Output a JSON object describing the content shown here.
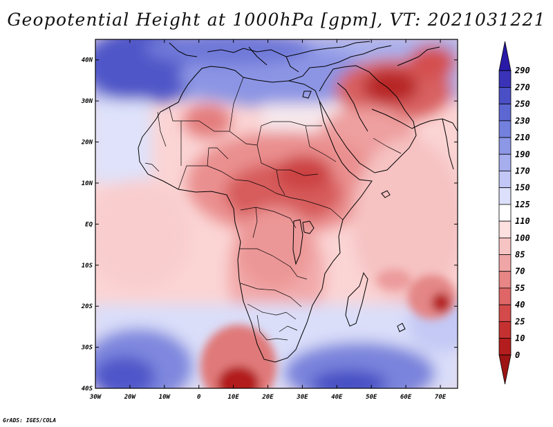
{
  "title": "Geopotential Height at 1000hPa [gpm], VT: 2021031221",
  "credit": "GrADS: IGES/COLA",
  "map": {
    "lon_range": [
      -30,
      75
    ],
    "lat_range": [
      -40,
      45
    ],
    "lon_ticks": [
      {
        "value": -30,
        "label": "30W"
      },
      {
        "value": -20,
        "label": "20W"
      },
      {
        "value": -10,
        "label": "10W"
      },
      {
        "value": 0,
        "label": "0"
      },
      {
        "value": 10,
        "label": "10E"
      },
      {
        "value": 20,
        "label": "20E"
      },
      {
        "value": 30,
        "label": "30E"
      },
      {
        "value": 40,
        "label": "40E"
      },
      {
        "value": 50,
        "label": "50E"
      },
      {
        "value": 60,
        "label": "60E"
      },
      {
        "value": 70,
        "label": "70E"
      }
    ],
    "lat_ticks": [
      {
        "value": 40,
        "label": "40N"
      },
      {
        "value": 30,
        "label": "30N"
      },
      {
        "value": 20,
        "label": "20N"
      },
      {
        "value": 10,
        "label": "10N"
      },
      {
        "value": 0,
        "label": "EQ"
      },
      {
        "value": -10,
        "label": "10S"
      },
      {
        "value": -20,
        "label": "20S"
      },
      {
        "value": -30,
        "label": "30S"
      },
      {
        "value": -40,
        "label": "40S"
      }
    ]
  },
  "colorbar": {
    "levels": [
      "290",
      "270",
      "250",
      "230",
      "210",
      "190",
      "170",
      "150",
      "125",
      "110",
      "100",
      "85",
      "70",
      "55",
      "40",
      "25",
      "10",
      "0"
    ],
    "colors": [
      "#2a1aa8",
      "#3a33b8",
      "#4b4fc6",
      "#5d67d2",
      "#7480dd",
      "#8c97e6",
      "#a6aeee",
      "#c2c7f5",
      "#dde0fa",
      "#ffffff",
      "#fde0e0",
      "#f7c4c4",
      "#f0a6a6",
      "#e88585",
      "#df6666",
      "#d44a4a",
      "#c53131",
      "#b41d1d",
      "#9e1414"
    ]
  }
}
